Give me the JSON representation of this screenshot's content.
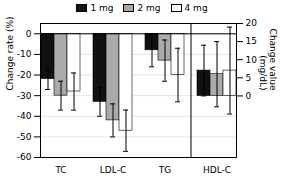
{
  "chart_data": {
    "type": "bar",
    "categories": [
      "TC",
      "LDL-C",
      "TG",
      "HDL-C"
    ],
    "series": [
      {
        "name": "1 mg",
        "color": "#111111",
        "values": [
          -22,
          -33,
          -8,
          null
        ],
        "errors": [
          5,
          7,
          8,
          null
        ]
      },
      {
        "name": "2 mg",
        "color": "#aaaaaa",
        "values": [
          -30,
          -42,
          -13,
          null
        ],
        "errors": [
          7,
          8,
          10,
          null
        ]
      },
      {
        "name": "4 mg",
        "color": "#ffffff",
        "values": [
          -28,
          -47,
          -20,
          null
        ],
        "errors": [
          9,
          10,
          13,
          null
        ]
      },
      {
        "name": "1 mg",
        "color": "#111111",
        "axis": "y2",
        "values": [
          null,
          null,
          null,
          7
        ],
        "errors": [
          null,
          null,
          null,
          7
        ]
      },
      {
        "name": "2 mg",
        "color": "#aaaaaa",
        "axis": "y2",
        "values": [
          null,
          null,
          null,
          6
        ],
        "errors": [
          null,
          null,
          null,
          9
        ]
      },
      {
        "name": "4 mg",
        "color": "#ffffff",
        "axis": "y2",
        "values": [
          null,
          null,
          null,
          7
        ],
        "errors": [
          null,
          null,
          null,
          12
        ]
      }
    ],
    "ylabel": "Change rate (%)",
    "y2label": "Change value\n(mg/dL)",
    "ylim": [
      -60,
      5
    ],
    "yticks": [
      0,
      -10,
      -20,
      -30,
      -40,
      -50,
      -60
    ],
    "y2lim": [
      -17,
      20
    ],
    "y2ticks": [
      0,
      5,
      10,
      15,
      20
    ],
    "grid": true
  }
}
